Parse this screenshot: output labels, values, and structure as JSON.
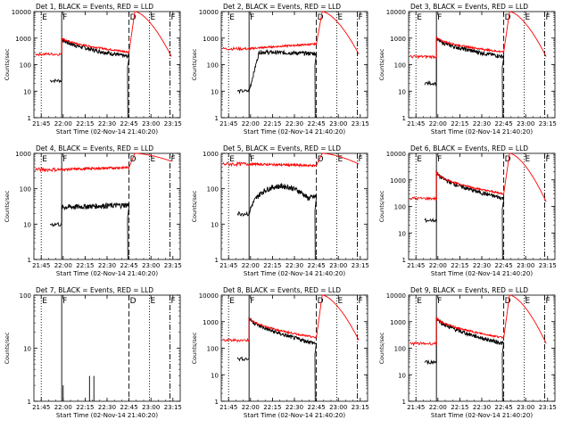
{
  "figure": {
    "start_time_label": "Start Time (02-Nov-14 21:40:20)",
    "ylabel": "Counts/sec",
    "legend_text": "BLACK = Events, RED = LLD",
    "colors": {
      "events": "#000000",
      "lld": "#ff0000",
      "background": "#ffffff"
    }
  },
  "chart_data": [
    {
      "type": "line",
      "title": "Det 1, BLACK = Events, RED = LLD",
      "detector": "Det 1",
      "xlabel": "Start Time (02-Nov-14 21:40:20)",
      "ylabel": "Counts/sec",
      "yscale": "log",
      "ylim": [
        1,
        10000
      ],
      "xticks": [
        "21:45",
        "22:00",
        "22:15",
        "22:30",
        "22:45",
        "23:00",
        "23:15"
      ],
      "ytick_labels": [
        "1",
        "10",
        "100",
        "1000",
        "10000"
      ],
      "markers": [
        {
          "label": "E",
          "time": "21:45"
        },
        {
          "label": "F",
          "time": "21:59"
        },
        {
          "label": "D",
          "time": "22:45"
        },
        {
          "label": "E",
          "time": "22:59"
        },
        {
          "label": "F",
          "time": "23:13"
        }
      ],
      "series": [
        {
          "name": "Events",
          "color": "#000000",
          "profile": "black_decay",
          "start": "21:51",
          "s0": 25,
          "peak": 1000,
          "end": 200
        },
        {
          "name": "LLD",
          "color": "#ff0000",
          "profile": "red_decay",
          "r0": 250,
          "peak": 1100,
          "mid": 300,
          "top": 10000,
          "tail": 200
        }
      ]
    },
    {
      "type": "line",
      "title": "Det 2, BLACK = Events, RED = LLD",
      "detector": "Det 2",
      "xlabel": "Start Time (02-Nov-14 21:40:20)",
      "ylabel": "Counts/sec",
      "yscale": "log",
      "ylim": [
        1,
        10000
      ],
      "xticks": [
        "21:45",
        "22:00",
        "22:15",
        "22:30",
        "22:45",
        "23:00",
        "23:15"
      ],
      "ytick_labels": [
        "1",
        "10",
        "100",
        "1000",
        "10000"
      ],
      "markers": [
        {
          "label": "E",
          "time": "21:45"
        },
        {
          "label": "F",
          "time": "21:59"
        },
        {
          "label": "D",
          "time": "22:45"
        },
        {
          "label": "E",
          "time": "22:59"
        },
        {
          "label": "F",
          "time": "23:13"
        }
      ],
      "series": [
        {
          "name": "Events",
          "color": "#000000",
          "profile": "black_rise",
          "start": "21:51",
          "s0": 10,
          "peak": 300,
          "end": 250
        },
        {
          "name": "LLD",
          "color": "#ff0000",
          "profile": "red_flat",
          "r0": 400,
          "peak": 400,
          "mid": 600,
          "top": 10000,
          "tail": 250
        }
      ]
    },
    {
      "type": "line",
      "title": "Det 3, BLACK = Events, RED = LLD",
      "detector": "Det 3",
      "xlabel": "Start Time (02-Nov-14 21:40:20)",
      "ylabel": "Counts/sec",
      "yscale": "log",
      "ylim": [
        1,
        10000
      ],
      "xticks": [
        "21:45",
        "22:00",
        "22:15",
        "22:30",
        "22:45",
        "23:00",
        "23:15"
      ],
      "ytick_labels": [
        "1",
        "10",
        "100",
        "1000",
        "10000"
      ],
      "markers": [
        {
          "label": "E",
          "time": "21:45"
        },
        {
          "label": "F",
          "time": "21:59"
        },
        {
          "label": "D",
          "time": "22:45"
        },
        {
          "label": "E",
          "time": "22:59"
        },
        {
          "label": "F",
          "time": "23:13"
        }
      ],
      "series": [
        {
          "name": "Events",
          "color": "#000000",
          "profile": "black_decay",
          "start": "21:51",
          "s0": 20,
          "peak": 1000,
          "end": 200
        },
        {
          "name": "LLD",
          "color": "#ff0000",
          "profile": "red_decay",
          "r0": 200,
          "peak": 1100,
          "mid": 300,
          "top": 10000,
          "tail": 200
        }
      ]
    },
    {
      "type": "line",
      "title": "Det 4, BLACK = Events, RED = LLD",
      "detector": "Det 4",
      "xlabel": "Start Time (02-Nov-14 21:40:20)",
      "ylabel": "Counts/sec",
      "yscale": "log",
      "ylim": [
        1,
        1000
      ],
      "xticks": [
        "21:45",
        "22:00",
        "22:15",
        "22:30",
        "22:45",
        "23:00",
        "23:15"
      ],
      "ytick_labels": [
        "1",
        "10",
        "100",
        "1000"
      ],
      "markers": [
        {
          "label": "E",
          "time": "21:45"
        },
        {
          "label": "F",
          "time": "21:59"
        },
        {
          "label": "D",
          "time": "22:45"
        },
        {
          "label": "E",
          "time": "22:59"
        },
        {
          "label": "F",
          "time": "23:13"
        }
      ],
      "series": [
        {
          "name": "Events",
          "color": "#000000",
          "profile": "black_flat",
          "start": "21:51",
          "s0": 10,
          "peak": 30,
          "end": 35
        },
        {
          "name": "LLD",
          "color": "#ff0000",
          "profile": "red_flat",
          "r0": 350,
          "peak": 350,
          "mid": 400,
          "top": 1000,
          "tail": 600
        }
      ]
    },
    {
      "type": "line",
      "title": "Det 5, BLACK = Events, RED = LLD",
      "detector": "Det 5",
      "xlabel": "Start Time (02-Nov-14 21:40:20)",
      "ylabel": "Counts/sec",
      "yscale": "log",
      "ylim": [
        1,
        1000
      ],
      "xticks": [
        "21:45",
        "22:00",
        "22:15",
        "22:30",
        "22:45",
        "23:00",
        "23:15"
      ],
      "ytick_labels": [
        "1",
        "10",
        "100",
        "1000"
      ],
      "markers": [
        {
          "label": "E",
          "time": "21:45"
        },
        {
          "label": "F",
          "time": "21:59"
        },
        {
          "label": "D",
          "time": "22:45"
        },
        {
          "label": "E",
          "time": "22:59"
        },
        {
          "label": "F",
          "time": "23:13"
        }
      ],
      "series": [
        {
          "name": "Events",
          "color": "#000000",
          "profile": "black_hump",
          "start": "21:51",
          "s0": 20,
          "peak": 100,
          "end": 60
        },
        {
          "name": "LLD",
          "color": "#ff0000",
          "profile": "red_flat",
          "r0": 500,
          "peak": 500,
          "mid": 450,
          "top": 1000,
          "tail": 500
        }
      ]
    },
    {
      "type": "line",
      "title": "Det 6, BLACK = Events, RED = LLD",
      "detector": "Det 6",
      "xlabel": "Start Time (02-Nov-14 21:40:20)",
      "ylabel": "Counts/sec",
      "yscale": "log",
      "ylim": [
        1,
        10000
      ],
      "xticks": [
        "21:45",
        "22:00",
        "22:15",
        "22:30",
        "22:45",
        "23:00",
        "23:15"
      ],
      "ytick_labels": [
        "1",
        "10",
        "100",
        "1000",
        "10000"
      ],
      "markers": [
        {
          "label": "E",
          "time": "21:45"
        },
        {
          "label": "F",
          "time": "21:59"
        },
        {
          "label": "D",
          "time": "22:45"
        },
        {
          "label": "E",
          "time": "22:59"
        },
        {
          "label": "F",
          "time": "23:13"
        }
      ],
      "series": [
        {
          "name": "Events",
          "color": "#000000",
          "profile": "black_decay",
          "start": "21:51",
          "s0": 30,
          "peak": 2000,
          "end": 200
        },
        {
          "name": "LLD",
          "color": "#ff0000",
          "profile": "red_decay",
          "r0": 200,
          "peak": 2000,
          "mid": 300,
          "top": 10000,
          "tail": 150
        }
      ]
    },
    {
      "type": "line",
      "title": "Det 7, BLACK = Events, RED = LLD",
      "detector": "Det 7",
      "xlabel": "Start Time (02-Nov-14 21:40:20)",
      "ylabel": "Counts/sec",
      "yscale": "log",
      "ylim": [
        1,
        100
      ],
      "xticks": [
        "21:45",
        "22:00",
        "22:15",
        "22:30",
        "22:45",
        "23:00",
        "23:15"
      ],
      "ytick_labels": [
        "1",
        "10",
        "100"
      ],
      "markers": [
        {
          "label": "E",
          "time": "21:45"
        },
        {
          "label": "F",
          "time": "21:59"
        },
        {
          "label": "D",
          "time": "22:45"
        },
        {
          "label": "E",
          "time": "22:59"
        },
        {
          "label": "F",
          "time": "23:13"
        }
      ],
      "series": [
        {
          "name": "Events",
          "color": "#000000",
          "profile": "black_sparse",
          "start": "21:51",
          "s0": 1,
          "peak": 3,
          "end": 1,
          "sparse_spikes": [
            [
              "22:00",
              2
            ],
            [
              "22:18",
              3
            ],
            [
              "22:21",
              3
            ]
          ]
        }
      ]
    },
    {
      "type": "line",
      "title": "Det 8, BLACK = Events, RED = LLD",
      "detector": "Det 8",
      "xlabel": "Start Time (02-Nov-14 21:40:20)",
      "ylabel": "Counts/sec",
      "yscale": "log",
      "ylim": [
        1,
        10000
      ],
      "xticks": [
        "21:45",
        "22:00",
        "22:15",
        "22:30",
        "22:45",
        "23:00",
        "23:15"
      ],
      "ytick_labels": [
        "1",
        "10",
        "100",
        "1000",
        "10000"
      ],
      "markers": [
        {
          "label": "E",
          "time": "21:45"
        },
        {
          "label": "F",
          "time": "21:59"
        },
        {
          "label": "D",
          "time": "22:45"
        },
        {
          "label": "E",
          "time": "22:59"
        },
        {
          "label": "F",
          "time": "23:13"
        }
      ],
      "series": [
        {
          "name": "Events",
          "color": "#000000",
          "profile": "black_decay",
          "start": "21:51",
          "s0": 40,
          "peak": 1500,
          "end": 150
        },
        {
          "name": "LLD",
          "color": "#ff0000",
          "profile": "red_decay",
          "r0": 200,
          "peak": 1500,
          "mid": 250,
          "top": 10000,
          "tail": 200
        }
      ]
    },
    {
      "type": "line",
      "title": "Det 9, BLACK = Events, RED = LLD",
      "detector": "Det 9",
      "xlabel": "Start Time (02-Nov-14 21:40:20)",
      "ylabel": "Counts/sec",
      "yscale": "log",
      "ylim": [
        1,
        10000
      ],
      "xticks": [
        "21:45",
        "22:00",
        "22:15",
        "22:30",
        "22:45",
        "23:00",
        "23:15"
      ],
      "ytick_labels": [
        "1",
        "10",
        "100",
        "1000",
        "10000"
      ],
      "markers": [
        {
          "label": "E",
          "time": "21:45"
        },
        {
          "label": "F",
          "time": "21:59"
        },
        {
          "label": "D",
          "time": "22:45"
        },
        {
          "label": "E",
          "time": "22:59"
        },
        {
          "label": "F",
          "time": "23:13"
        }
      ],
      "series": [
        {
          "name": "Events",
          "color": "#000000",
          "profile": "black_decay",
          "start": "21:51",
          "s0": 30,
          "peak": 1500,
          "end": 150
        },
        {
          "name": "LLD",
          "color": "#ff0000",
          "profile": "red_decay",
          "r0": 150,
          "peak": 1500,
          "mid": 250,
          "top": 10000,
          "tail": 150
        }
      ]
    }
  ]
}
